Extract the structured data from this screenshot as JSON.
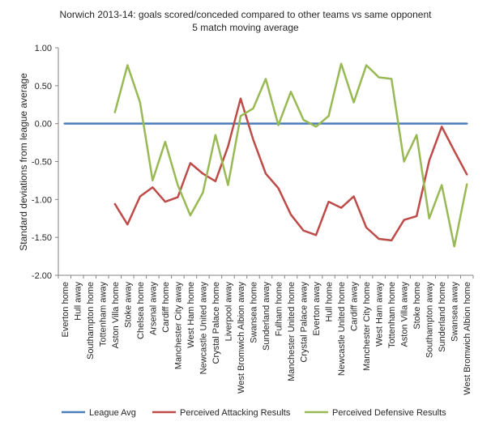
{
  "chart_data": {
    "type": "line",
    "title": "Norwich 2013-14: goals scored/conceded compared to other teams vs same opponent",
    "subtitle": "5 match moving average",
    "xlabel": "",
    "ylabel": "Standard deviations from league average",
    "ylim": [
      -2.0,
      1.0
    ],
    "ytick_labels": [
      "1.00",
      "0.50",
      "0.00",
      "-0.50",
      "-1.00",
      "-1.50",
      "-2.00"
    ],
    "grid": false,
    "legend_position": "bottom",
    "categories": [
      "Everton home",
      "Hull away",
      "Southampton home",
      "Tottenham away",
      "Aston Villa home",
      "Stoke away",
      "Chelsea home",
      "Arsenal away",
      "Cardiff home",
      "Manchester City away",
      "West Ham home",
      "Newcastle United away",
      "Crystal Palace home",
      "Liverpool away",
      "West Bromwich Albion away",
      "Swansea home",
      "Sunderland away",
      "Fulham home",
      "Manchester United home",
      "Crystal Palace away",
      "Everton away",
      "Hull home",
      "Newcastle United home",
      "Cardiff away",
      "Manchester City home",
      "West Ham away",
      "Tottenham home",
      "Aston Villa away",
      "Stoke home",
      "Southampton away",
      "Sunderland home",
      "Swansea away",
      "West Bromwich Albion home"
    ],
    "series": [
      {
        "name": "League Avg",
        "color": "#4a7ebb",
        "values": [
          0,
          0,
          0,
          0,
          0,
          0,
          0,
          0,
          0,
          0,
          0,
          0,
          0,
          0,
          0,
          0,
          0,
          0,
          0,
          0,
          0,
          0,
          0,
          0,
          0,
          0,
          0,
          0,
          0,
          0,
          0,
          0,
          0
        ]
      },
      {
        "name": "Perceived Attacking Results",
        "color": "#be4b48",
        "values": [
          null,
          null,
          null,
          null,
          -1.06,
          -1.33,
          -0.96,
          -0.84,
          -1.03,
          -0.97,
          -0.52,
          -0.66,
          -0.76,
          -0.3,
          0.33,
          -0.21,
          -0.66,
          -0.85,
          -1.2,
          -1.41,
          -1.47,
          -1.03,
          -1.11,
          -0.96,
          -1.37,
          -1.52,
          -1.54,
          -1.27,
          -1.22,
          -0.49,
          -0.04,
          -0.36,
          -0.67
        ]
      },
      {
        "name": "Perceived Defensive Results",
        "color": "#98b954",
        "values": [
          null,
          null,
          null,
          null,
          0.15,
          0.77,
          0.28,
          -0.75,
          -0.24,
          -0.81,
          -1.21,
          -0.91,
          -0.15,
          -0.81,
          0.1,
          0.2,
          0.59,
          -0.02,
          0.42,
          0.05,
          -0.04,
          0.1,
          0.79,
          0.28,
          0.77,
          0.61,
          0.59,
          -0.5,
          -0.15,
          -1.25,
          -0.81,
          -1.62,
          -0.8
        ]
      }
    ]
  }
}
